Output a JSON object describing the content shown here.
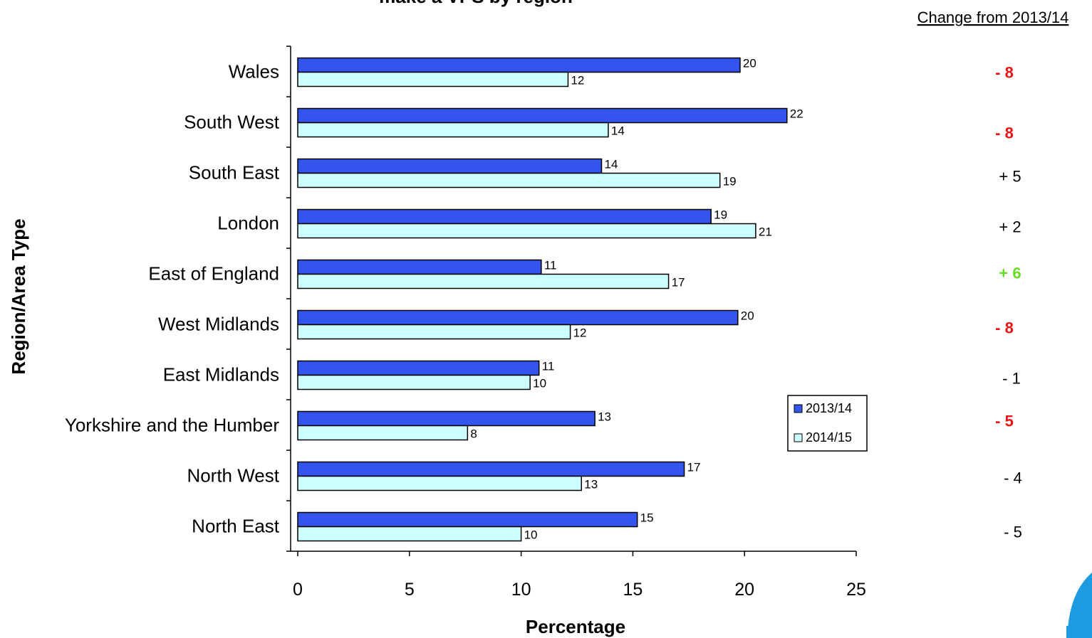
{
  "chart_data": {
    "type": "bar",
    "orientation": "horizontal",
    "title": "make a VPS by region",
    "xlabel": "Percentage",
    "ylabel": "Region/Area Type",
    "xlim": [
      0,
      25
    ],
    "xticks": [
      0,
      5,
      10,
      15,
      20,
      25
    ],
    "categories": [
      "Wales",
      "South West",
      "South East",
      "London",
      "East of England",
      "West Midlands",
      "East Midlands",
      "Yorkshire and the Humber",
      "North West",
      "North East"
    ],
    "series": [
      {
        "name": "2013/14",
        "color": "#3355ee",
        "values": [
          19.8,
          21.9,
          13.6,
          18.5,
          10.9,
          19.7,
          10.8,
          13.3,
          17.3,
          15.2
        ],
        "labels": [
          "20",
          "22",
          "14",
          "19",
          "11",
          "20",
          "11",
          "13",
          "17",
          "15"
        ]
      },
      {
        "name": "2014/15",
        "color": "#ccffff",
        "values": [
          12.1,
          13.9,
          18.9,
          20.5,
          16.6,
          12.2,
          10.4,
          7.6,
          12.7,
          10.0
        ],
        "labels": [
          "12",
          "14",
          "19",
          "21",
          "17",
          "12",
          "10",
          "8",
          "13",
          "10"
        ]
      }
    ],
    "legend_position": "right",
    "grid": false,
    "change_column": {
      "header": "Change from 2013/14",
      "values": [
        {
          "text": "- 8",
          "color": "#ee1111",
          "bold": true
        },
        {
          "text": "- 8",
          "color": "#ee1111",
          "bold": true
        },
        {
          "text": "+ 5",
          "color": "#000000",
          "bold": false
        },
        {
          "text": "+ 2",
          "color": "#000000",
          "bold": false
        },
        {
          "text": "+ 6",
          "color": "#66dd22",
          "bold": true
        },
        {
          "text": "- 8",
          "color": "#ee1111",
          "bold": true
        },
        {
          "text": "- 1",
          "color": "#000000",
          "bold": false
        },
        {
          "text": "- 5",
          "color": "#ee1111",
          "bold": true
        },
        {
          "text": "- 4",
          "color": "#000000",
          "bold": false
        },
        {
          "text": "- 5",
          "color": "#000000",
          "bold": false
        }
      ]
    }
  }
}
